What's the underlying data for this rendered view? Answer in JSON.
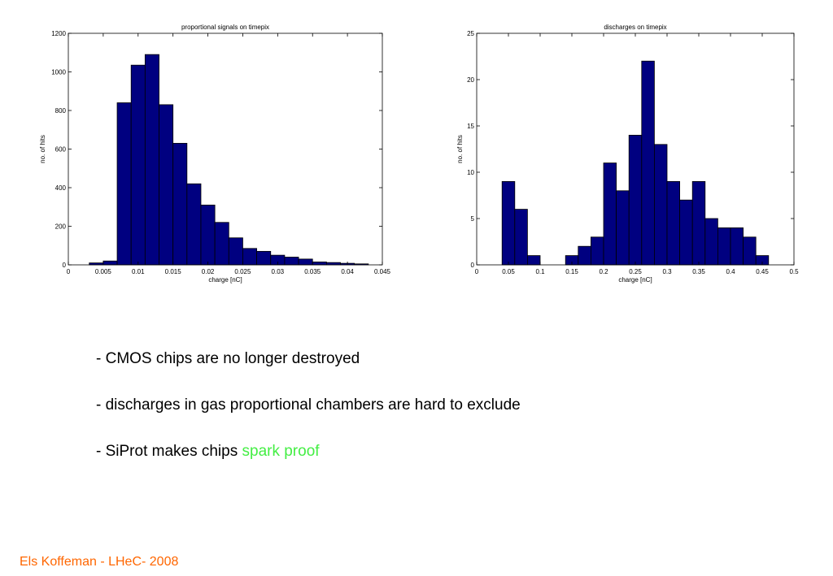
{
  "chart_data": [
    {
      "type": "bar",
      "title": "proportional signals on timepix",
      "xlabel": "charge [nC]",
      "ylabel": "no. of hits",
      "xlim": [
        0,
        0.045
      ],
      "ylim": [
        0,
        1200
      ],
      "xticks": [
        0,
        0.005,
        0.01,
        0.015,
        0.02,
        0.025,
        0.03,
        0.035,
        0.04,
        0.045
      ],
      "xtick_labels": [
        "0",
        "0.005",
        "0.01",
        "0.015",
        "0.02",
        "0.025",
        "0.03",
        "0.035",
        "0.04",
        "0.045"
      ],
      "yticks": [
        0,
        200,
        400,
        600,
        800,
        1000,
        1200
      ],
      "ytick_labels": [
        "0",
        "200",
        "400",
        "600",
        "800",
        "1000",
        "1200"
      ],
      "bin_width": 0.002,
      "x": [
        0.004,
        0.006,
        0.008,
        0.01,
        0.012,
        0.014,
        0.016,
        0.018,
        0.02,
        0.022,
        0.024,
        0.026,
        0.028,
        0.03,
        0.032,
        0.034,
        0.036,
        0.038,
        0.04,
        0.042
      ],
      "values": [
        10,
        20,
        840,
        1035,
        1090,
        830,
        630,
        420,
        310,
        220,
        140,
        85,
        70,
        50,
        40,
        30,
        15,
        12,
        8,
        5
      ],
      "bar_color": "#000080",
      "grid": false
    },
    {
      "type": "bar",
      "title": "discharges on timepix",
      "xlabel": "charge [nC]",
      "ylabel": "no. of hits",
      "xlim": [
        0,
        0.5
      ],
      "ylim": [
        0,
        25
      ],
      "xticks": [
        0,
        0.05,
        0.1,
        0.15,
        0.2,
        0.25,
        0.3,
        0.35,
        0.4,
        0.45,
        0.5
      ],
      "xtick_labels": [
        "0",
        "0.05",
        "0.1",
        "0.15",
        "0.2",
        "0.25",
        "0.3",
        "0.35",
        "0.4",
        "0.45",
        "0.5"
      ],
      "yticks": [
        0,
        5,
        10,
        15,
        20,
        25
      ],
      "ytick_labels": [
        "0",
        "5",
        "10",
        "15",
        "20",
        "25"
      ],
      "bin_width": 0.02,
      "x": [
        0.05,
        0.07,
        0.09,
        0.11,
        0.13,
        0.15,
        0.17,
        0.19,
        0.21,
        0.23,
        0.25,
        0.27,
        0.29,
        0.31,
        0.33,
        0.35,
        0.37,
        0.39,
        0.41,
        0.43,
        0.45
      ],
      "values": [
        9,
        6,
        1,
        0,
        0,
        1,
        2,
        3,
        11,
        8,
        14,
        22,
        13,
        9,
        7,
        9,
        5,
        4,
        4,
        3,
        1
      ],
      "bar_color": "#000080",
      "grid": false
    }
  ],
  "bullets": {
    "item1": "- CMOS chips are no longer destroyed",
    "item2": "- discharges in gas proportional chambers are hard to exclude",
    "item3_prefix": "- SiProt makes chips ",
    "item3_highlight": "spark proof",
    "highlight_color": "#44ee44"
  },
  "footer": {
    "text": "Els Koffeman - LHeC- 2008",
    "color": "#ff6600"
  }
}
